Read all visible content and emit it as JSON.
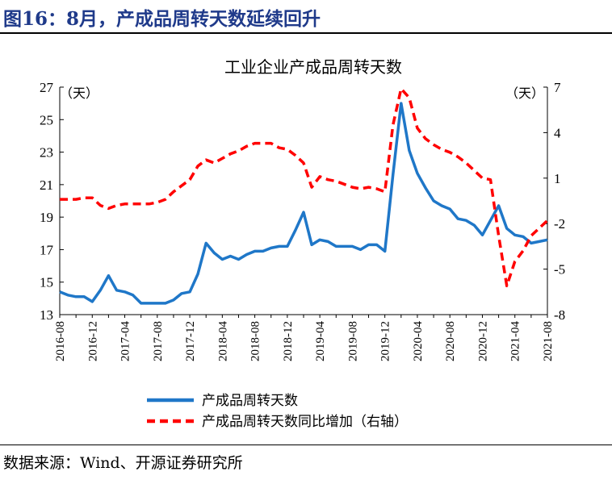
{
  "figure": {
    "title": "图16：8月，产成品周转天数延续回升",
    "source": "数据来源：Wind、开源证券研究所"
  },
  "chart_data": {
    "type": "line",
    "title": "工业企业产成品周转天数",
    "left_unit": "（天）",
    "right_unit": "（天）",
    "x_start": "2016-08",
    "x_tick_labels": [
      "2016-08",
      "2016-12",
      "2017-04",
      "2017-08",
      "2017-12",
      "2018-04",
      "2018-08",
      "2018-12",
      "2019-04",
      "2019-08",
      "2019-12",
      "2020-04",
      "2020-08",
      "2020-12",
      "2021-04",
      "2021-08"
    ],
    "y_left": {
      "range": [
        13,
        27
      ],
      "ticks": [
        13,
        15,
        17,
        19,
        21,
        23,
        25,
        27
      ]
    },
    "y_right": {
      "range": [
        -8,
        7
      ],
      "ticks": [
        -8,
        -5,
        -2,
        1,
        4,
        7
      ]
    },
    "legend_position": "bottom",
    "series": [
      {
        "name": "产成品周转天数",
        "axis": "left",
        "color": "#1f77c8",
        "style": "solid",
        "values": [
          14.4,
          14.2,
          14.1,
          14.1,
          13.8,
          14.5,
          15.4,
          14.5,
          14.4,
          14.2,
          13.7,
          13.7,
          13.7,
          13.7,
          13.9,
          14.3,
          14.4,
          15.5,
          17.4,
          16.8,
          16.4,
          16.6,
          16.4,
          16.7,
          16.9,
          16.9,
          17.1,
          17.2,
          17.2,
          18.2,
          19.3,
          17.3,
          17.6,
          17.5,
          17.2,
          17.2,
          17.2,
          17.0,
          17.3,
          17.3,
          16.9,
          21.6,
          26.0,
          23.1,
          21.7,
          20.8,
          20.0,
          19.7,
          19.5,
          18.9,
          18.8,
          18.5,
          17.9,
          18.8,
          19.7,
          18.3,
          17.9,
          17.8,
          17.4,
          17.5,
          17.6
        ]
      },
      {
        "name": "产成品周转天数同比增加（右轴）",
        "axis": "right",
        "color": "#ff0000",
        "style": "dashed",
        "values": [
          -0.4,
          -0.4,
          -0.4,
          -0.3,
          -0.3,
          -0.8,
          -1.0,
          -0.8,
          -0.7,
          -0.7,
          -0.7,
          -0.7,
          -0.6,
          -0.4,
          0.1,
          0.5,
          0.9,
          1.8,
          2.2,
          2.0,
          2.3,
          2.6,
          2.8,
          3.1,
          3.3,
          3.3,
          3.3,
          3.0,
          2.9,
          2.5,
          2.0,
          0.4,
          1.1,
          0.9,
          0.8,
          0.6,
          0.4,
          0.3,
          0.4,
          0.3,
          0.1,
          4.5,
          6.9,
          6.3,
          4.3,
          3.6,
          3.2,
          2.9,
          2.7,
          2.4,
          2.0,
          1.5,
          1.0,
          0.9,
          -2.8,
          -6.1,
          -4.5,
          -3.8,
          -2.8,
          -2.3,
          -1.8
        ]
      }
    ]
  }
}
